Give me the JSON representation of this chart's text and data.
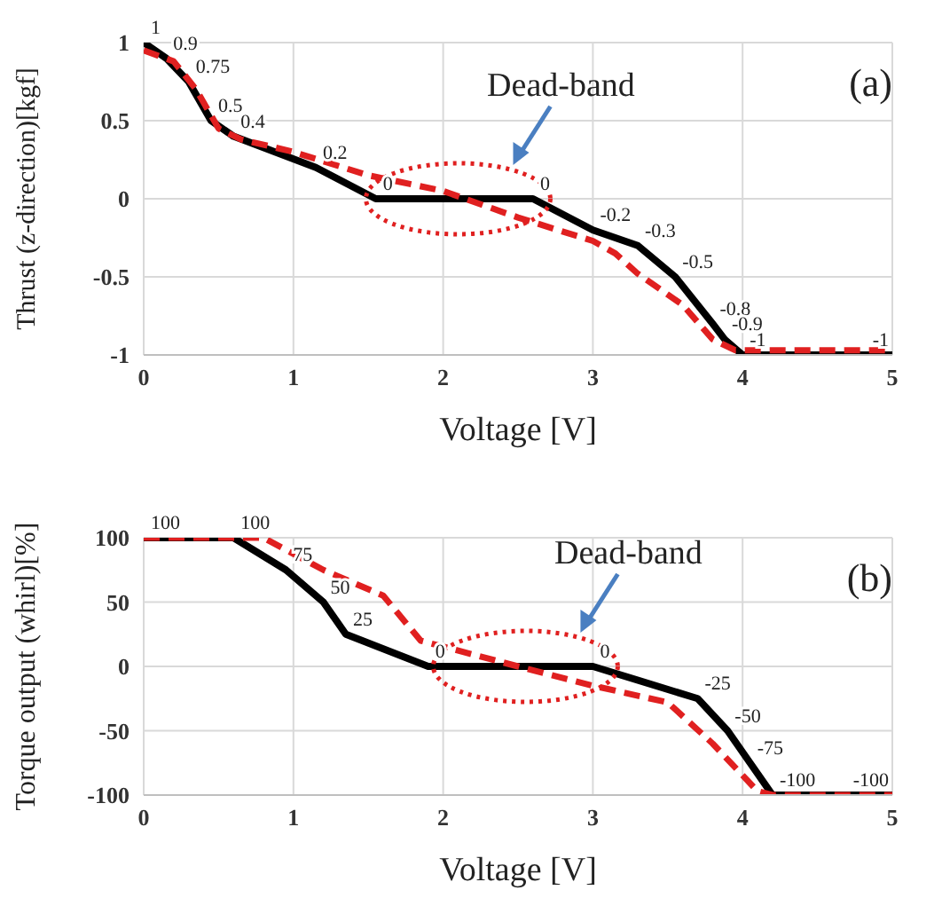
{
  "chart_data": [
    {
      "type": "line",
      "xlabel": "Voltage [V]",
      "ylabel": "Thrust (z-direction)[kgf]",
      "xlim": [
        0,
        5
      ],
      "xticks": [
        0,
        1,
        2,
        3,
        4,
        5
      ],
      "ylim": [
        -1,
        1
      ],
      "yticks": [
        -1,
        -0.5,
        0,
        0.5,
        1
      ],
      "grid": true,
      "marker": "none",
      "annotations": [
        {
          "text": "Dead-band",
          "x": 2.1,
          "y": 0
        },
        "(a)"
      ],
      "series": [
        {
          "color": "#000000",
          "line_style": "solid",
          "x": [
            0,
            0.15,
            0.3,
            0.45,
            0.6,
            1.15,
            1.55,
            2.6,
            3.0,
            3.3,
            3.55,
            3.8,
            3.88,
            4.0,
            5.0
          ],
          "values": [
            1,
            0.9,
            0.75,
            0.5,
            0.4,
            0.2,
            0,
            0,
            -0.2,
            -0.3,
            -0.5,
            -0.8,
            -0.9,
            -1,
            -1
          ],
          "value_labels": [
            "1",
            "0.9",
            "0.75",
            "0.5",
            "0.4",
            "0.2",
            "0",
            "0",
            "-0.2",
            "-0.3",
            "-0.5",
            "-0.8",
            "-0.9",
            "-1",
            "-1"
          ]
        },
        {
          "color": "#e02020",
          "line_style": "dashed",
          "x": [
            0,
            0.2,
            0.35,
            0.5,
            0.65,
            1.0,
            1.5,
            2.0,
            2.5,
            3.0,
            3.15,
            3.3,
            3.6,
            3.8,
            3.95,
            5.0
          ],
          "values": [
            0.95,
            0.88,
            0.7,
            0.45,
            0.38,
            0.3,
            0.15,
            0.05,
            -0.12,
            -0.27,
            -0.35,
            -0.48,
            -0.68,
            -0.9,
            -0.97,
            -0.97
          ]
        }
      ]
    },
    {
      "type": "line",
      "xlabel": "Voltage [V]",
      "ylabel": "Torque output (whirl)[%]",
      "xlim": [
        0,
        5
      ],
      "xticks": [
        0,
        1,
        2,
        3,
        4,
        5
      ],
      "ylim": [
        -100,
        100
      ],
      "yticks": [
        -100,
        -50,
        0,
        50,
        100
      ],
      "grid": true,
      "marker": "none",
      "annotations": [
        {
          "text": "Dead-band",
          "x": 2.55,
          "y": 0
        },
        "(b)"
      ],
      "series": [
        {
          "color": "#000000",
          "line_style": "solid",
          "x": [
            0,
            0.6,
            0.95,
            1.2,
            1.35,
            1.9,
            3.0,
            3.7,
            3.9,
            4.05,
            4.2,
            5.0
          ],
          "values": [
            100,
            100,
            75,
            50,
            25,
            0,
            0,
            -25,
            -50,
            -75,
            -100,
            -100
          ],
          "value_labels": [
            "100",
            "100",
            "75",
            "50",
            "25",
            "0",
            "0",
            "-25",
            "-50",
            "-75",
            "-100",
            "-100"
          ]
        },
        {
          "color": "#e02020",
          "line_style": "dashed",
          "x": [
            0,
            0.8,
            1.2,
            1.6,
            1.85,
            2.5,
            3.0,
            3.5,
            3.8,
            4.1,
            4.2,
            5.0
          ],
          "values": [
            100,
            100,
            75,
            55,
            20,
            0,
            -15,
            -28,
            -60,
            -97,
            -100,
            -100
          ]
        }
      ]
    }
  ]
}
